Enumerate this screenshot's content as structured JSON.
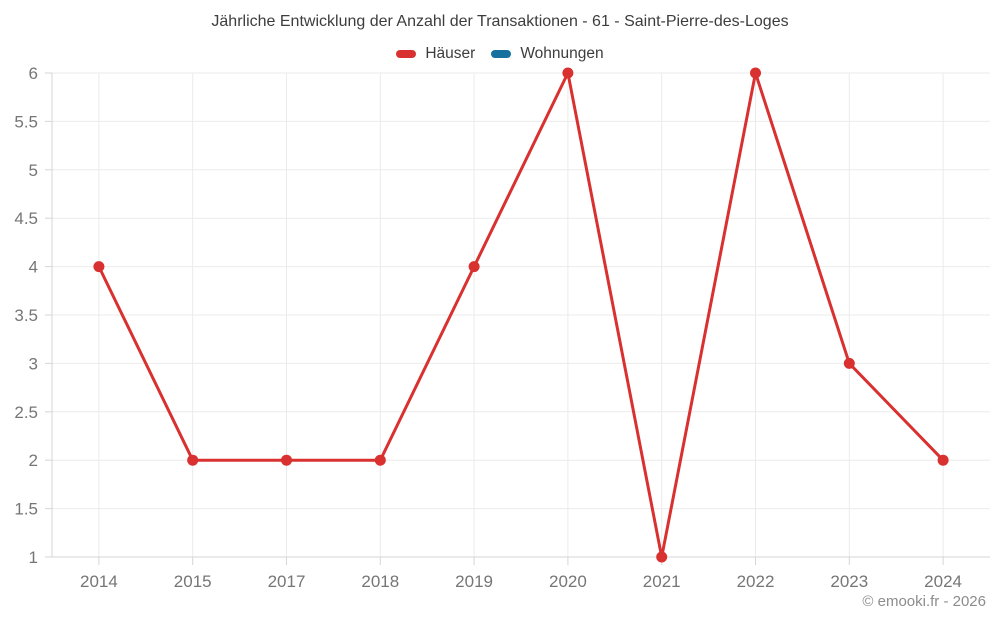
{
  "chart_data": {
    "type": "line",
    "title": "Jährliche Entwicklung der Anzahl der Transaktionen - 61 - Saint-Pierre-des-Loges",
    "categories": [
      "2014",
      "2015",
      "2017",
      "2018",
      "2019",
      "2020",
      "2021",
      "2022",
      "2023",
      "2024"
    ],
    "series": [
      {
        "name": "Häuser",
        "color": "#d93030",
        "values": [
          4,
          2,
          2,
          2,
          4,
          6,
          1,
          6,
          3,
          2
        ]
      },
      {
        "name": "Wohnungen",
        "color": "#17719e",
        "values": []
      }
    ],
    "ylim": [
      1,
      6
    ],
    "ytick_step": 0.5,
    "ytick_labels": [
      "1",
      "1.5",
      "2",
      "2.5",
      "3",
      "3.5",
      "4",
      "4.5",
      "5",
      "5.5",
      "6"
    ],
    "grid": true,
    "legend_position": "top",
    "colors": {
      "grid": "#ebebeb",
      "axis": "#d6d6d6",
      "title_text": "#3d3d3d",
      "tick_text": "#767676",
      "footer_text": "#8c8c8c"
    }
  },
  "footer": {
    "copyright": "© emooki.fr - 2026"
  }
}
